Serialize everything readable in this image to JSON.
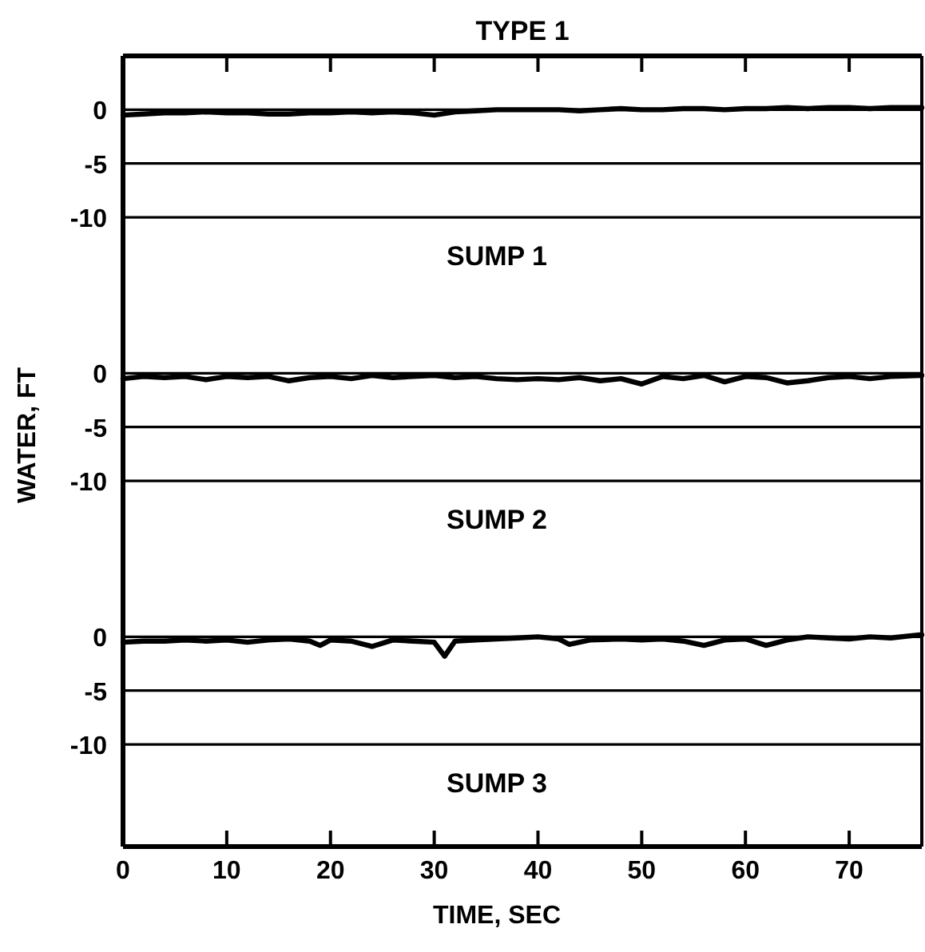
{
  "chart_data": [
    {
      "type": "line",
      "title": "TYPE 1",
      "annotations": [
        "SUMP 1"
      ],
      "x": [
        0,
        2,
        4,
        6,
        8,
        10,
        12,
        14,
        16,
        18,
        20,
        22,
        24,
        26,
        28,
        30,
        32,
        34,
        36,
        38,
        40,
        42,
        44,
        46,
        48,
        50,
        52,
        54,
        56,
        58,
        60,
        62,
        64,
        66,
        68,
        70,
        72,
        74,
        77
      ],
      "series": [
        {
          "color": "#000000",
          "values": [
            -0.5,
            -0.4,
            -0.3,
            -0.3,
            -0.2,
            -0.3,
            -0.3,
            -0.4,
            -0.4,
            -0.3,
            -0.3,
            -0.2,
            -0.3,
            -0.2,
            -0.3,
            -0.5,
            -0.2,
            -0.1,
            0,
            0,
            0,
            0,
            -0.1,
            0,
            0.1,
            0,
            0,
            0.1,
            0.1,
            0,
            0.1,
            0.1,
            0.2,
            0.1,
            0.2,
            0.2,
            0.1,
            0.2,
            0.2
          ]
        }
      ],
      "xlim": [
        0,
        77
      ],
      "xticks": [
        0,
        10,
        20,
        30,
        40,
        50,
        60,
        70
      ],
      "ylim": [
        -19.5,
        5
      ],
      "yticks": [
        0,
        -5,
        -10
      ],
      "grid": "y",
      "tick_labels": "y",
      "line_style": "solid"
    },
    {
      "type": "line",
      "ylabel": "WATER, FT",
      "annotations": [
        "SUMP 2"
      ],
      "x": [
        0,
        2,
        4,
        6,
        8,
        10,
        12,
        14,
        16,
        18,
        20,
        22,
        24,
        26,
        28,
        30,
        32,
        34,
        36,
        38,
        40,
        42,
        44,
        46,
        48,
        50,
        52,
        54,
        56,
        58,
        60,
        62,
        64,
        66,
        68,
        70,
        72,
        74,
        77
      ],
      "series": [
        {
          "color": "#000000",
          "values": [
            -0.5,
            -0.3,
            -0.4,
            -0.3,
            -0.6,
            -0.3,
            -0.4,
            -0.3,
            -0.7,
            -0.4,
            -0.3,
            -0.5,
            -0.2,
            -0.4,
            -0.3,
            -0.2,
            -0.4,
            -0.3,
            -0.5,
            -0.6,
            -0.5,
            -0.6,
            -0.4,
            -0.7,
            -0.5,
            -1.0,
            -0.3,
            -0.5,
            -0.2,
            -0.8,
            -0.3,
            -0.4,
            -0.9,
            -0.7,
            -0.4,
            -0.3,
            -0.5,
            -0.3,
            -0.2
          ]
        }
      ],
      "xlim": [
        0,
        77
      ],
      "ylim": [
        -19.5,
        5
      ],
      "yticks": [
        0,
        -5,
        -10
      ],
      "grid": "y",
      "tick_labels": "y",
      "line_style": "solid"
    },
    {
      "type": "line",
      "xlabel": "TIME, SEC",
      "annotations": [
        "SUMP 3"
      ],
      "x": [
        0,
        2,
        4,
        6,
        8,
        10,
        12,
        14,
        16,
        18,
        19,
        20,
        22,
        24,
        26,
        28,
        30,
        31,
        32,
        34,
        36,
        38,
        40,
        42,
        43,
        45,
        48,
        50,
        52,
        54,
        56,
        58,
        60,
        62,
        64,
        66,
        68,
        70,
        72,
        74,
        77
      ],
      "series": [
        {
          "color": "#000000",
          "values": [
            -0.5,
            -0.4,
            -0.4,
            -0.3,
            -0.4,
            -0.3,
            -0.5,
            -0.3,
            -0.2,
            -0.4,
            -0.8,
            -0.3,
            -0.4,
            -0.9,
            -0.3,
            -0.4,
            -0.5,
            -1.8,
            -0.4,
            -0.3,
            -0.2,
            -0.1,
            0,
            -0.2,
            -0.7,
            -0.3,
            -0.2,
            -0.3,
            -0.2,
            -0.4,
            -0.8,
            -0.3,
            -0.2,
            -0.8,
            -0.3,
            0,
            -0.1,
            -0.2,
            0,
            -0.1,
            0.2
          ]
        }
      ],
      "xlim": [
        0,
        77
      ],
      "xticks": [
        0,
        10,
        20,
        30,
        40,
        50,
        60,
        70
      ],
      "ylim": [
        -19.5,
        5
      ],
      "yticks": [
        0,
        -5,
        -10
      ],
      "grid": "y",
      "line_style": "solid"
    }
  ]
}
